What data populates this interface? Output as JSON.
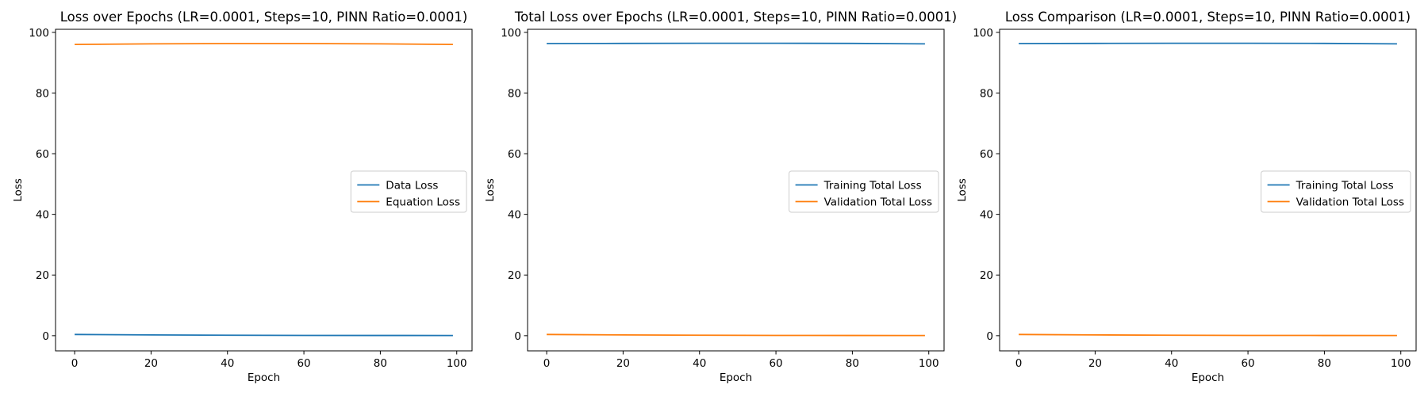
{
  "chart_data": [
    {
      "type": "line",
      "title": "Loss over Epochs (LR=0.0001, Steps=10, PINN Ratio=0.0001)",
      "xlabel": "Epoch",
      "ylabel": "Loss",
      "xlim": [
        -5,
        104
      ],
      "ylim": [
        -5,
        101
      ],
      "xticks": [
        0,
        20,
        40,
        60,
        80,
        100
      ],
      "yticks": [
        0,
        20,
        40,
        60,
        80,
        100
      ],
      "legend": "center-right",
      "series": [
        {
          "name": "Data Loss",
          "color": "#1f77b4",
          "x": [
            0,
            20,
            40,
            60,
            80,
            99
          ],
          "y": [
            0.4,
            0.25,
            0.15,
            0.1,
            0.08,
            0.05
          ]
        },
        {
          "name": "Equation Loss",
          "color": "#ff7f0e",
          "x": [
            0,
            20,
            40,
            60,
            80,
            99
          ],
          "y": [
            96.0,
            96.2,
            96.3,
            96.3,
            96.2,
            96.0
          ]
        }
      ]
    },
    {
      "type": "line",
      "title": "Total Loss over Epochs (LR=0.0001, Steps=10, PINN Ratio=0.0001)",
      "xlabel": "Epoch",
      "ylabel": "Loss",
      "xlim": [
        -5,
        104
      ],
      "ylim": [
        -5,
        101
      ],
      "xticks": [
        0,
        20,
        40,
        60,
        80,
        100
      ],
      "yticks": [
        0,
        20,
        40,
        60,
        80,
        100
      ],
      "legend": "center-right",
      "series": [
        {
          "name": "Training Total Loss",
          "color": "#1f77b4",
          "x": [
            0,
            20,
            40,
            60,
            80,
            99
          ],
          "y": [
            96.3,
            96.35,
            96.4,
            96.4,
            96.35,
            96.2
          ]
        },
        {
          "name": "Validation Total Loss",
          "color": "#ff7f0e",
          "x": [
            0,
            20,
            40,
            60,
            80,
            99
          ],
          "y": [
            0.4,
            0.25,
            0.15,
            0.1,
            0.08,
            0.05
          ]
        }
      ]
    },
    {
      "type": "line",
      "title": "Loss Comparison (LR=0.0001, Steps=10, PINN Ratio=0.0001)",
      "xlabel": "Epoch",
      "ylabel": "Loss",
      "xlim": [
        -5,
        104
      ],
      "ylim": [
        -5,
        101
      ],
      "xticks": [
        0,
        20,
        40,
        60,
        80,
        100
      ],
      "yticks": [
        0,
        20,
        40,
        60,
        80,
        100
      ],
      "legend": "center-right",
      "series": [
        {
          "name": "Training Total Loss",
          "color": "#1f77b4",
          "x": [
            0,
            20,
            40,
            60,
            80,
            99
          ],
          "y": [
            96.3,
            96.35,
            96.4,
            96.4,
            96.35,
            96.2
          ]
        },
        {
          "name": "Validation Total Loss",
          "color": "#ff7f0e",
          "x": [
            0,
            20,
            40,
            60,
            80,
            99
          ],
          "y": [
            0.4,
            0.25,
            0.15,
            0.1,
            0.08,
            0.05
          ]
        }
      ]
    }
  ]
}
